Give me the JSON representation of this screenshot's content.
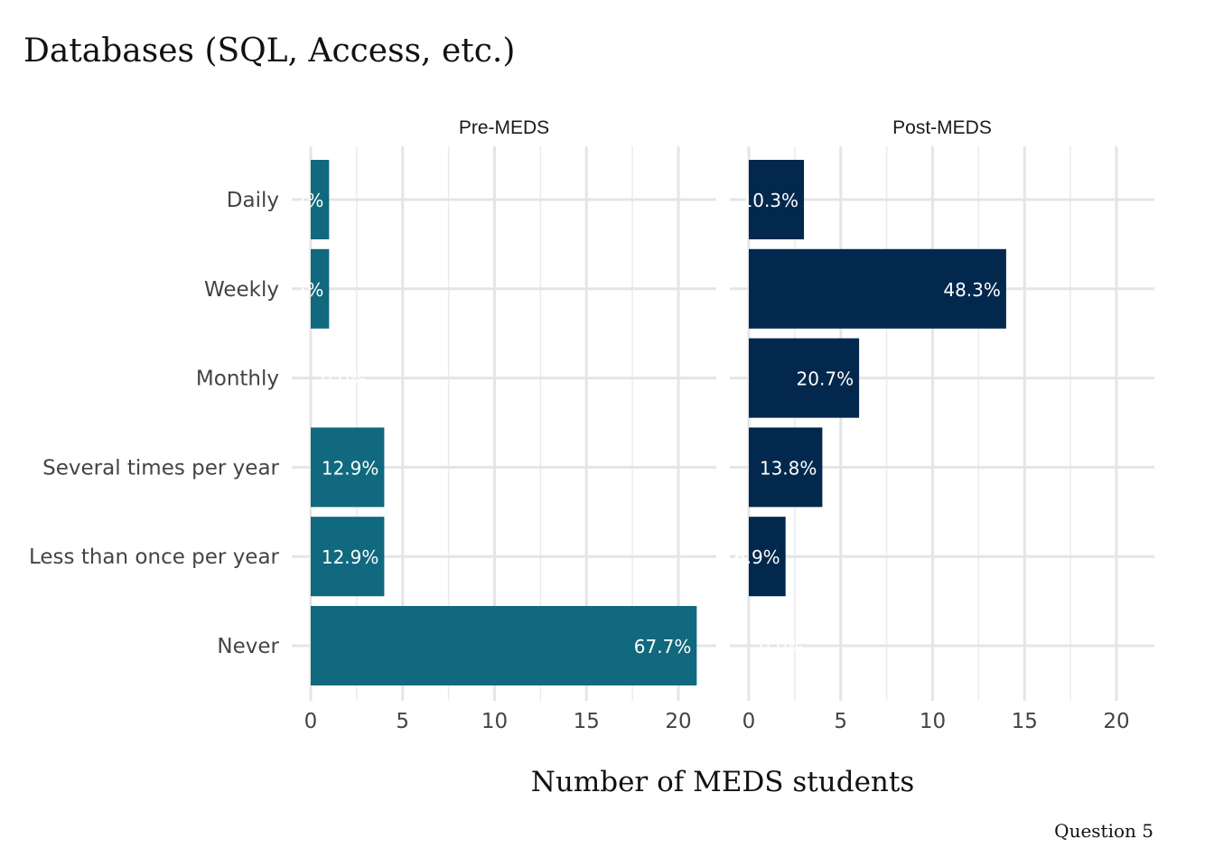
{
  "chart_data": {
    "type": "bar",
    "orientation": "horizontal",
    "title": "Databases (SQL, Access, etc.)",
    "xlabel": "Number of MEDS students",
    "ylabel": "",
    "caption": "Question 5",
    "xlim": [
      0,
      22
    ],
    "xticks": [
      0,
      5,
      10,
      15,
      20
    ],
    "grid": true,
    "categories": [
      "Daily",
      "Weekly",
      "Monthly",
      "Several times per year",
      "Less than once per year",
      "Never"
    ],
    "panels": [
      {
        "name": "Pre-MEDS",
        "color": "#10697e",
        "values": [
          1,
          1,
          0,
          4,
          4,
          21
        ],
        "labels": [
          "3.2%",
          "3.2%",
          "0.0%",
          "12.9%",
          "12.9%",
          "67.7%"
        ]
      },
      {
        "name": "Post-MEDS",
        "color": "#03284d",
        "values": [
          3,
          14,
          6,
          4,
          2,
          0
        ],
        "labels": [
          "10.3%",
          "48.3%",
          "20.7%",
          "13.8%",
          "6.9%",
          "0.0%"
        ]
      }
    ]
  }
}
